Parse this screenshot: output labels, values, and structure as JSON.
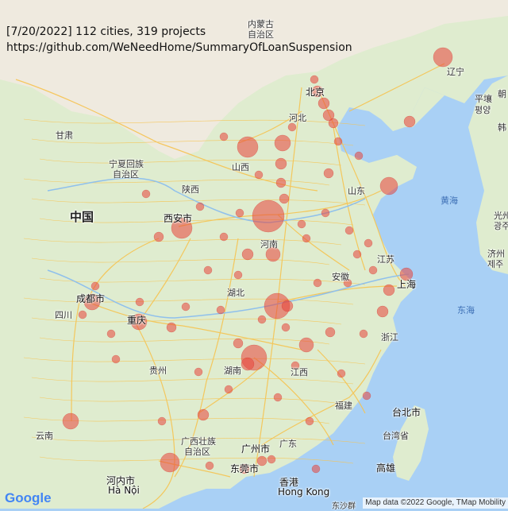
{
  "header": {
    "summary": "[7/20/2022] 112 cities, 319 projects",
    "url": "https://github.com/WeNeedHome/SummaryOfLoanSuspension"
  },
  "map": {
    "logo": "Google",
    "attribution": "Map data ©2022 Google, TMap Mobility",
    "labels": {
      "inner_mongolia_1": "内蒙古",
      "inner_mongolia_2": "自治区",
      "gansu": "甘肃",
      "ningxia_1": "宁夏回族",
      "ningxia_2": "自治区",
      "shanxi": "山西",
      "shaanxi": "陕西",
      "hebei": "河北",
      "beijing": "北京",
      "shandong": "山东",
      "henan": "河南",
      "china": "中国",
      "xian": "西安市",
      "jiangsu": "江苏",
      "shanghai": "上海",
      "anhui": "安徽",
      "hubei": "湖北",
      "chengdu": "成都市",
      "sichuan": "四川",
      "chongqing": "重庆",
      "zhejiang": "浙江",
      "guizhou": "贵州",
      "hunan": "湖南",
      "jiangxi": "江西",
      "fujian": "福建",
      "taipei": "台北市",
      "taiwan": "台湾省",
      "kaohsiung": "高雄",
      "yunnan": "云南",
      "guangxi_1": "广西壮族",
      "guangxi_2": "自治区",
      "guangzhou": "广州市",
      "guangdong": "广东",
      "dongguan": "东莞市",
      "hongkong_cn": "香港",
      "hongkong_en": "Hong Kong",
      "hanoi_cn": "河内市",
      "hanoi_en": "Hà Nội",
      "liaoning": "辽宁",
      "pyongyang_1": "平壤",
      "pyongyang_2": "평양",
      "korea": "朝",
      "korea_2": "韩",
      "gwangju_1": "光州",
      "gwangju_2": "광주",
      "jeju_1": "济州",
      "jeju_2": "제주",
      "yellow_sea": "黄海",
      "east_sea": "东海",
      "dongsha": "东沙群"
    }
  },
  "colors": {
    "land": "#dfeccf",
    "north_land": "#eee9dc",
    "sea": "#a9d0f5",
    "road": "#f6c350",
    "marker": "#e8433a"
  }
}
